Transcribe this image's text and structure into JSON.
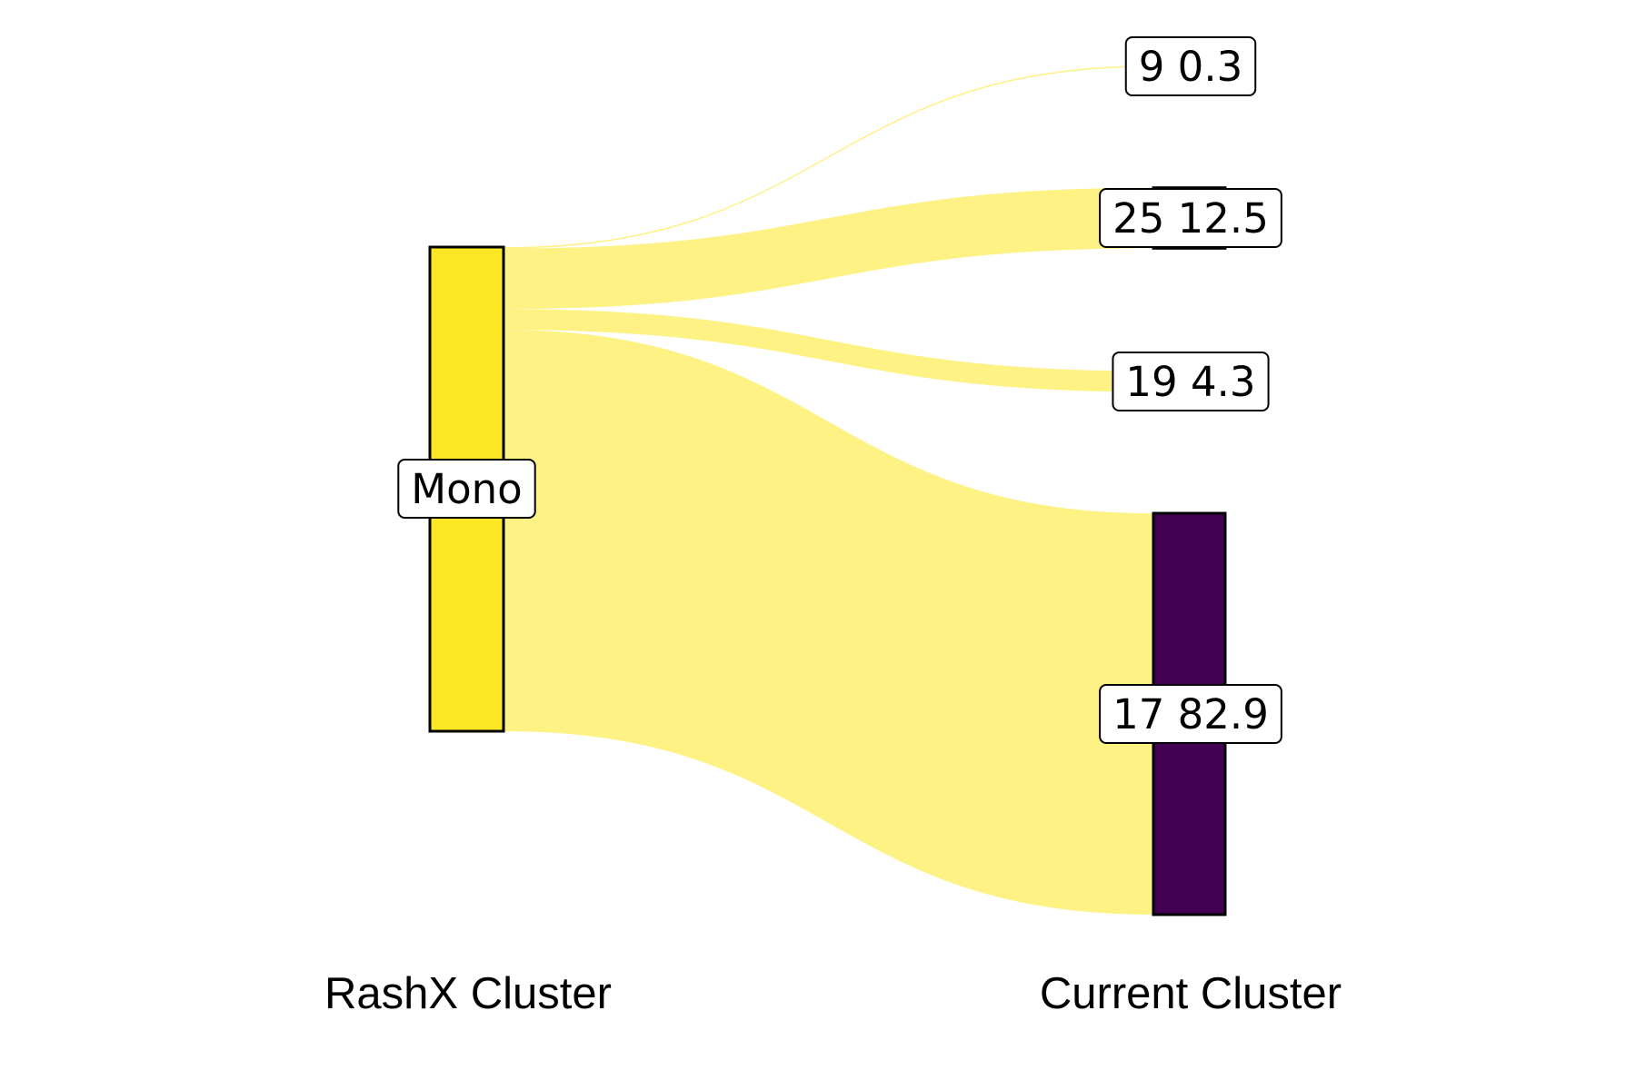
{
  "chart_data": {
    "type": "sankey",
    "title": "",
    "axes": {
      "left": "RashX Cluster",
      "right": "Current Cluster"
    },
    "source_nodes": [
      {
        "label": "Mono",
        "color": "#fde725"
      }
    ],
    "target_nodes": [
      {
        "label": "9 0.3",
        "cluster": "9",
        "percent": 0.3
      },
      {
        "label": "25 12.5",
        "cluster": "25",
        "percent": 12.5
      },
      {
        "label": "19 4.3",
        "cluster": "19",
        "percent": 4.3
      },
      {
        "label": "17 82.9",
        "cluster": "17",
        "percent": 82.9
      }
    ],
    "flows": [
      {
        "from": "Mono",
        "to": "9 0.3",
        "percent": 0.3
      },
      {
        "from": "Mono",
        "to": "25 12.5",
        "percent": 12.5
      },
      {
        "from": "Mono",
        "to": "19 4.3",
        "percent": 4.3
      },
      {
        "from": "Mono",
        "to": "17 82.9",
        "percent": 82.9
      }
    ],
    "colors": {
      "source": "#fde725",
      "flow": "#fef17b",
      "dominant_target": "#440154"
    }
  }
}
